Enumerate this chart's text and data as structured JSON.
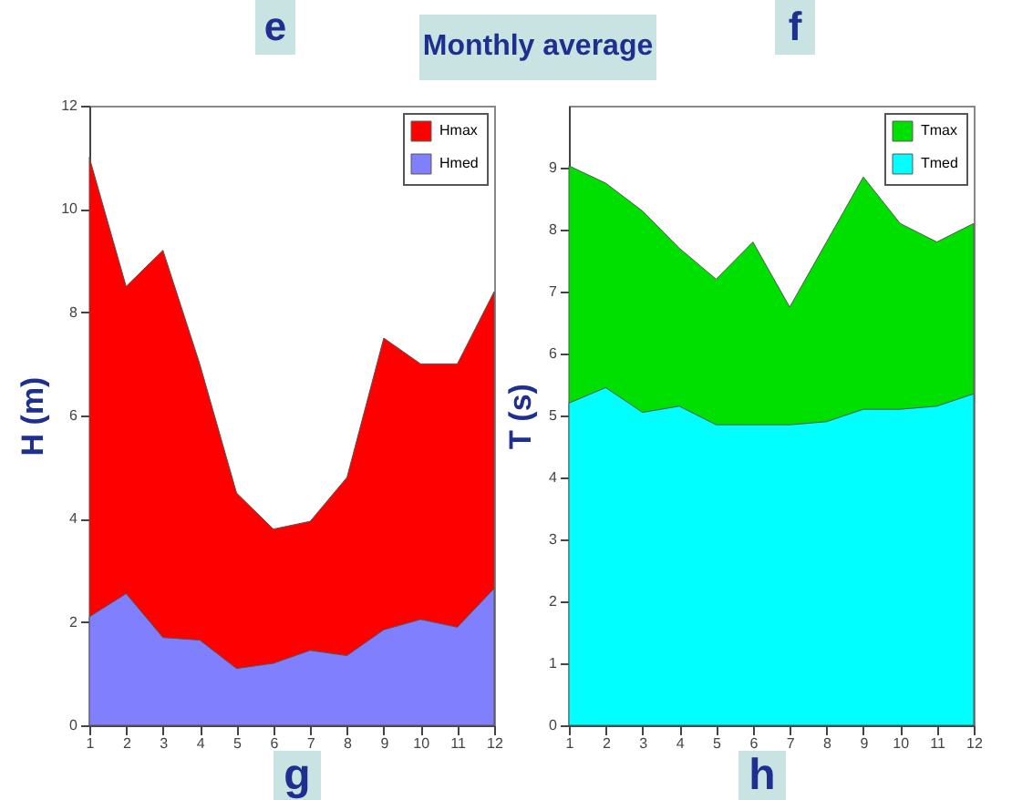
{
  "chart_data": [
    {
      "type": "area",
      "title": "e",
      "ylabel": "H (m)",
      "annotations": [
        "Monthly average",
        "g"
      ],
      "x": [
        1,
        2,
        3,
        4,
        5,
        6,
        7,
        8,
        9,
        10,
        11,
        12
      ],
      "xlim": [
        1,
        12
      ],
      "xticks": [
        1,
        2,
        3,
        4,
        5,
        6,
        7,
        8,
        9,
        10,
        11,
        12
      ],
      "ylim": [
        0,
        12
      ],
      "yticks": [
        0,
        2,
        4,
        6,
        8,
        10,
        12
      ],
      "legend": "top right",
      "series": [
        {
          "name": "Hmax",
          "color": "#ff0000",
          "values": [
            11,
            8.5,
            9.2,
            7,
            4.5,
            3.8,
            3.95,
            4.8,
            7.5,
            7,
            7,
            8.4
          ]
        },
        {
          "name": "Hmed",
          "color": "#8080ff",
          "values": [
            2.1,
            2.55,
            1.7,
            1.65,
            1.1,
            1.2,
            1.45,
            1.35,
            1.85,
            2.05,
            1.9,
            2.65
          ]
        }
      ]
    },
    {
      "type": "area",
      "title": "f",
      "ylabel": "T (s)",
      "annotations": [
        "h"
      ],
      "x": [
        1,
        2,
        3,
        4,
        5,
        6,
        7,
        8,
        9,
        10,
        11,
        12
      ],
      "xlim": [
        1,
        12
      ],
      "xticks": [
        1,
        2,
        3,
        4,
        5,
        6,
        7,
        8,
        9,
        10,
        11,
        12
      ],
      "ylim": [
        0,
        10
      ],
      "yticks": [
        0,
        1,
        2,
        3,
        4,
        5,
        6,
        7,
        8,
        9
      ],
      "legend": "top right",
      "series": [
        {
          "name": "Tmax",
          "color": "#00e000",
          "values": [
            9.03,
            8.75,
            8.3,
            7.7,
            7.2,
            7.8,
            6.75,
            7.8,
            8.85,
            8.1,
            7.8,
            8.1
          ]
        },
        {
          "name": "Tmed",
          "color": "#00ffff",
          "values": [
            5.2,
            5.45,
            5.05,
            5.15,
            4.85,
            4.85,
            4.85,
            4.9,
            5.1,
            5.1,
            5.15,
            5.35
          ]
        }
      ]
    }
  ]
}
